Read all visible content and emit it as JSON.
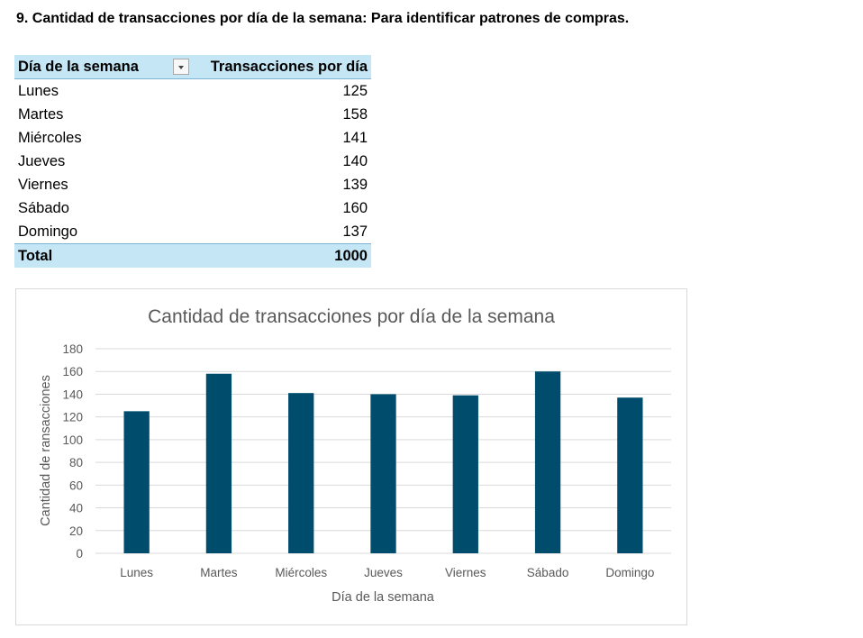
{
  "heading": "9. Cantidad de transacciones por día de la semana: Para identificar patrones de compras.",
  "table": {
    "headers": [
      "Día de la semana",
      "Transacciones por día"
    ],
    "rows": [
      {
        "day": "Lunes",
        "value": "125"
      },
      {
        "day": "Martes",
        "value": "158"
      },
      {
        "day": "Miércoles",
        "value": "141"
      },
      {
        "day": "Jueves",
        "value": "140"
      },
      {
        "day": "Viernes",
        "value": "139"
      },
      {
        "day": "Sábado",
        "value": "160"
      },
      {
        "day": "Domingo",
        "value": "137"
      }
    ],
    "total_label": "Total",
    "total_value": "1000",
    "header_bg": "#c5e6f5"
  },
  "chart_data": {
    "type": "bar",
    "title": "Cantidad de transacciones por día de la semana",
    "xlabel": "Día de la semana",
    "ylabel": "Cantidad de ransacciones",
    "categories": [
      "Lunes",
      "Martes",
      "Miércoles",
      "Jueves",
      "Viernes",
      "Sábado",
      "Domingo"
    ],
    "values": [
      125,
      158,
      141,
      140,
      139,
      160,
      137
    ],
    "ylim": [
      0,
      180
    ],
    "yticks": [
      0,
      20,
      40,
      60,
      80,
      100,
      120,
      140,
      160,
      180
    ],
    "grid": true,
    "legend": false,
    "bar_color": "#004c6d",
    "grid_color": "#d9d9d9"
  }
}
